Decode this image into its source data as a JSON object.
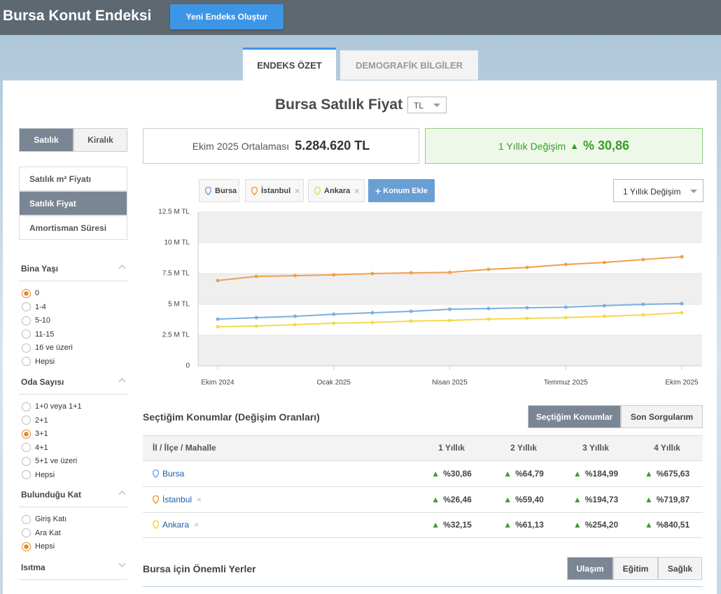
{
  "header": {
    "title": "Bursa Konut Endeksi",
    "button": "Yeni Endeks Oluştur"
  },
  "tabs": [
    "ENDEKS ÖZET",
    "DEMOGRAFİK BİLGİLER"
  ],
  "page_title": "Bursa Satılık Fiyat",
  "currency": "TL",
  "sidebar": {
    "mode_toggle": [
      "Satılık",
      "Kiralık"
    ],
    "menu": [
      "Satılık m² Fiyatı",
      "Satılık Fiyat",
      "Amortisman Süresi"
    ],
    "filters": [
      {
        "title": "Bina Yaşı",
        "options": [
          "0",
          "1-4",
          "5-10",
          "11-15",
          "16 ve üzeri",
          "Hepsi"
        ]
      },
      {
        "title": "Oda Sayısı",
        "options": [
          "1+0 veya 1+1",
          "2+1",
          "3+1",
          "4+1",
          "5+1 ve üzeri",
          "Hepsi"
        ]
      },
      {
        "title": "Bulunduğu Kat",
        "options": [
          "Giriş Katı",
          "Ara Kat",
          "Hepsi"
        ]
      },
      {
        "title": "Isıtma"
      }
    ]
  },
  "summary": {
    "average_label": "Ekim 2025 Ortalaması",
    "average_value": "5.284.620 TL",
    "change_label": "1 Yıllık Değişim",
    "change_value": "% 30,86"
  },
  "chart_controls": {
    "add_location": "Konum Ekle",
    "metric": "1 Yıllık Değişim"
  },
  "chart_data": {
    "type": "line",
    "categories": [
      "Ekim 2024",
      null,
      null,
      "Ocak 2025",
      null,
      null,
      "Nisan 2025",
      null,
      null,
      "Temmuz 2025",
      null,
      null,
      "Ekim 2025"
    ],
    "series": [
      {
        "name": "Bursa",
        "color": "#7aaee0",
        "values": [
          3.8,
          3.92,
          4.03,
          4.2,
          4.32,
          4.43,
          4.6,
          4.66,
          4.72,
          4.77,
          4.89,
          5.0,
          5.06
        ]
      },
      {
        "name": "İstanbul",
        "color": "#f0a04b",
        "values": [
          6.93,
          7.27,
          7.33,
          7.39,
          7.5,
          7.56,
          7.6,
          7.84,
          8.0,
          8.24,
          8.4,
          8.64,
          8.86
        ]
      },
      {
        "name": "Ankara",
        "color": "#f2d94e",
        "values": [
          3.18,
          3.24,
          3.35,
          3.47,
          3.52,
          3.64,
          3.69,
          3.81,
          3.86,
          3.92,
          4.03,
          4.15,
          4.32
        ]
      }
    ],
    "ylim": [
      0,
      12.5
    ],
    "yticks": [
      0,
      {
        "value": 2.5,
        "label": "2.5 M TL"
      },
      {
        "value": 5,
        "label": "5 M TL"
      },
      {
        "value": 7.5,
        "label": "7.5 M TL"
      },
      {
        "value": 10,
        "label": "10 M TL"
      },
      {
        "value": 12.5,
        "label": "12.5 M TL"
      }
    ],
    "grid": true
  },
  "locations_table": {
    "title": "Seçtiğim Konumlar (Değişim Oranları)",
    "buttons": [
      "Seçtiğim Konumlar",
      "Son Sorgularım"
    ],
    "headers": [
      "İl / İlçe / Mahalle",
      "1 Yıllık",
      "2 Yıllık",
      "3 Yıllık",
      "4 Yıllık"
    ],
    "rows": [
      [
        "Bursa",
        "%30,86",
        "%64,79",
        "%184,99",
        "%675,63"
      ],
      [
        "İstanbul",
        "%26,46",
        "%59,40",
        "%194,73",
        "%719,87"
      ],
      [
        "Ankara",
        "%32,15",
        "%61,13",
        "%254,20",
        "%840,51"
      ]
    ]
  },
  "places": {
    "title": "Bursa için Önemli Yerler",
    "tabs": [
      "Ulaşım",
      "Eğitim",
      "Sağlık"
    ]
  }
}
